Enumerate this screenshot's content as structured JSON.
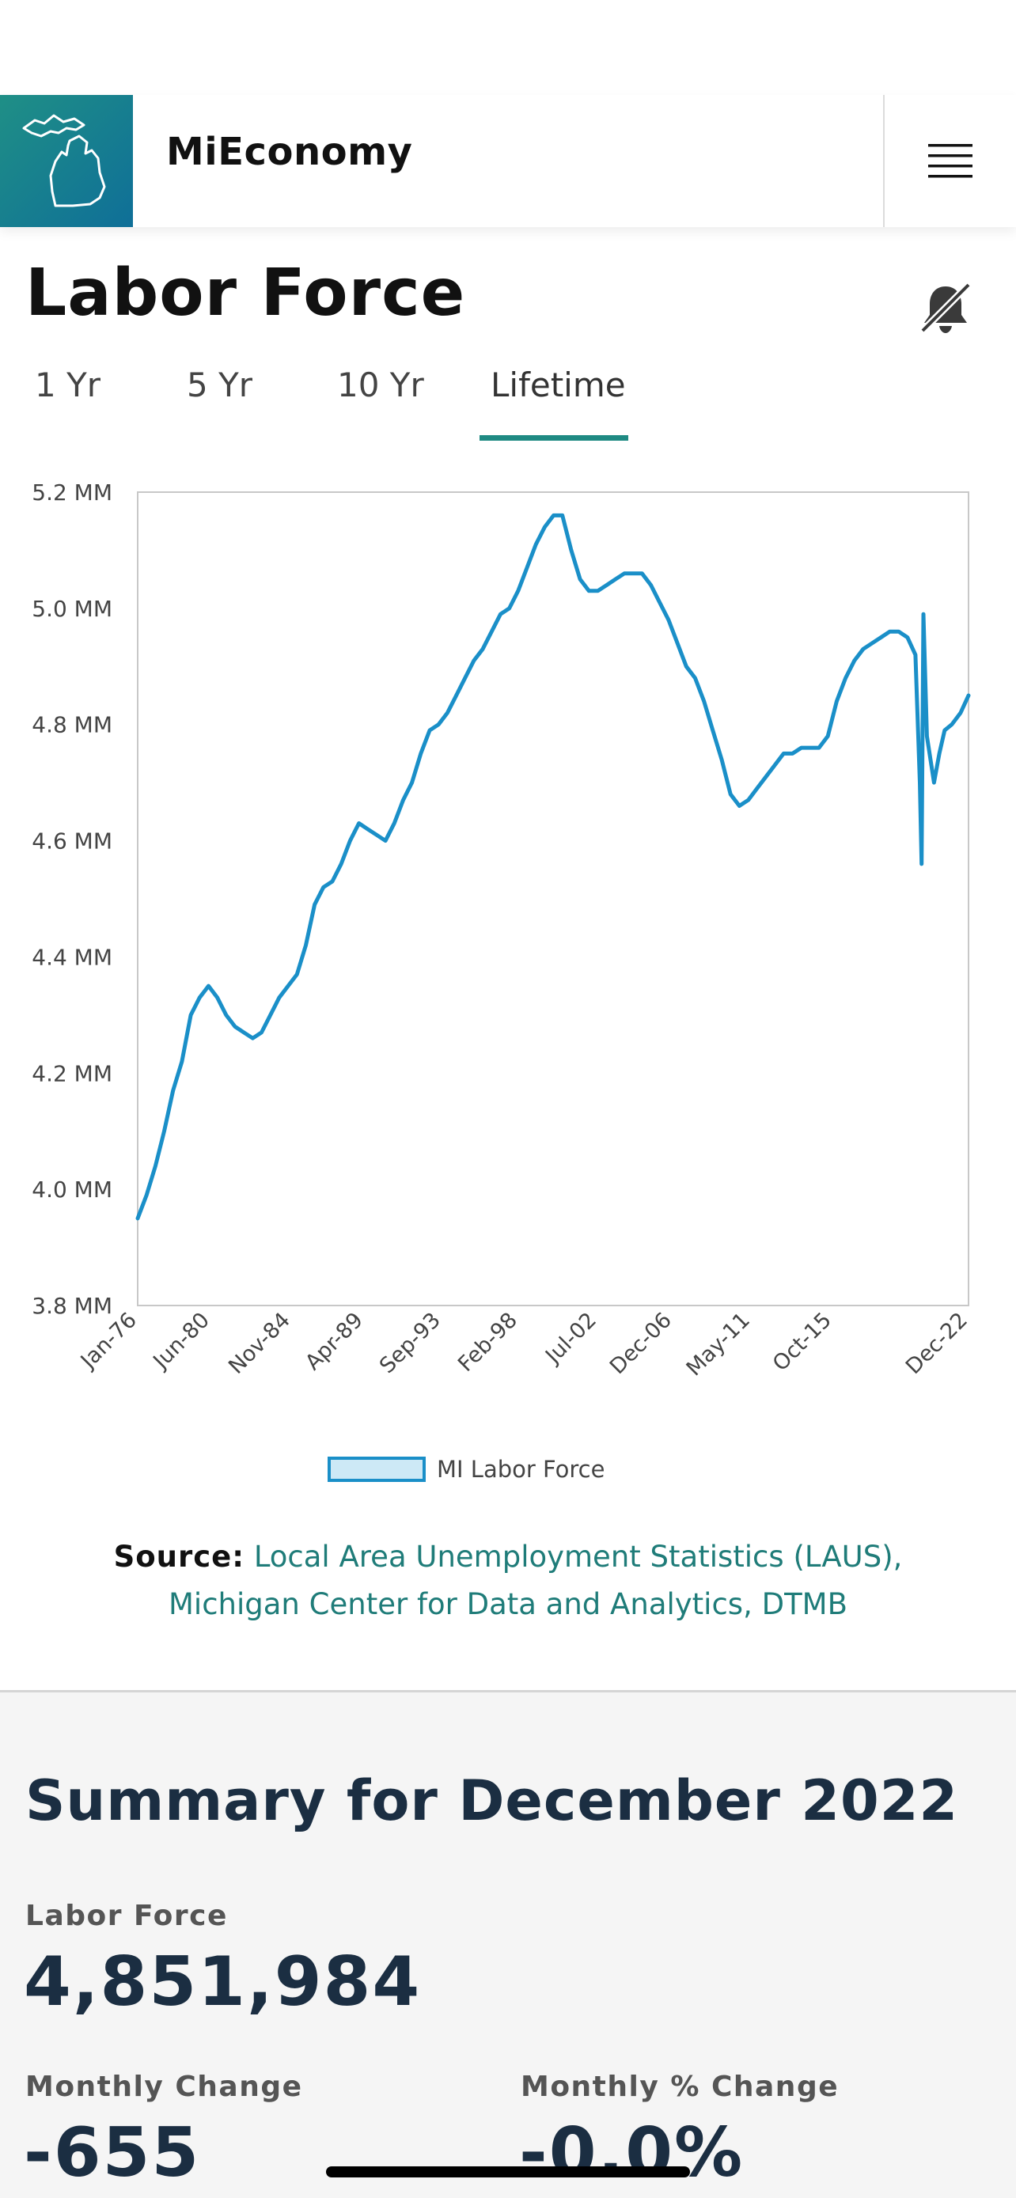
{
  "header": {
    "app_name": "MiEconomy",
    "logo_icon": "michigan-map-icon",
    "menu_icon": "hamburger-menu-icon"
  },
  "page": {
    "title": "Labor Force",
    "notification_icon": "bell-off-icon"
  },
  "tabs": [
    {
      "label": "1 Yr",
      "active": false
    },
    {
      "label": "5 Yr",
      "active": false
    },
    {
      "label": "10 Yr",
      "active": false
    },
    {
      "label": "Lifetime",
      "active": true
    }
  ],
  "colors": {
    "accent": "#1f8a83",
    "line": "#1a8fc8",
    "summary_text": "#1b2e42"
  },
  "chart_data": {
    "type": "line",
    "ylim": [
      3.8,
      5.2
    ],
    "y_ticks": [
      "5.2 MM",
      "5.0 MM",
      "4.8 MM",
      "4.6 MM",
      "4.4 MM",
      "4.2 MM",
      "4.0 MM",
      "3.8 MM"
    ],
    "x_ticks": [
      "Jan-76",
      "Jun-80",
      "Nov-84",
      "Apr-89",
      "Sep-93",
      "Feb-98",
      "Jul-02",
      "Dec-06",
      "May-11",
      "Oct-15",
      "Dec-22"
    ],
    "x_range": [
      1976.0,
      2022.95
    ],
    "series": [
      {
        "name": "MI Labor Force",
        "x": [
          1976.0,
          1976.5,
          1977.0,
          1977.5,
          1978.0,
          1978.5,
          1979.0,
          1979.5,
          1980.0,
          1980.5,
          1981.0,
          1981.5,
          1982.0,
          1982.5,
          1983.0,
          1983.5,
          1984.0,
          1984.5,
          1985.0,
          1985.5,
          1986.0,
          1986.5,
          1987.0,
          1987.5,
          1988.0,
          1988.5,
          1989.0,
          1989.5,
          1990.0,
          1990.5,
          1991.0,
          1991.5,
          1992.0,
          1992.5,
          1993.0,
          1993.5,
          1994.0,
          1994.5,
          1995.0,
          1995.5,
          1996.0,
          1996.5,
          1997.0,
          1997.5,
          1998.0,
          1998.5,
          1999.0,
          1999.5,
          2000.0,
          2000.5,
          2001.0,
          2001.5,
          2002.0,
          2002.5,
          2003.0,
          2003.5,
          2004.0,
          2004.5,
          2005.0,
          2005.5,
          2006.0,
          2006.5,
          2007.0,
          2007.5,
          2008.0,
          2008.5,
          2009.0,
          2009.5,
          2010.0,
          2010.5,
          2011.0,
          2011.5,
          2012.0,
          2012.5,
          2013.0,
          2013.5,
          2014.0,
          2014.5,
          2015.0,
          2015.5,
          2016.0,
          2016.5,
          2017.0,
          2017.5,
          2018.0,
          2018.5,
          2019.0,
          2019.5,
          2019.95,
          2020.2,
          2020.3,
          2020.4,
          2020.6,
          2020.8,
          2021.0,
          2021.3,
          2021.6,
          2022.0,
          2022.5,
          2022.95
        ],
        "y": [
          3.95,
          3.99,
          4.04,
          4.1,
          4.17,
          4.22,
          4.3,
          4.33,
          4.35,
          4.33,
          4.3,
          4.28,
          4.27,
          4.26,
          4.27,
          4.3,
          4.33,
          4.35,
          4.37,
          4.42,
          4.49,
          4.52,
          4.53,
          4.56,
          4.6,
          4.63,
          4.62,
          4.61,
          4.6,
          4.63,
          4.67,
          4.7,
          4.75,
          4.79,
          4.8,
          4.82,
          4.85,
          4.88,
          4.91,
          4.93,
          4.96,
          4.99,
          5.0,
          5.03,
          5.07,
          5.11,
          5.14,
          5.16,
          5.16,
          5.1,
          5.05,
          5.03,
          5.03,
          5.04,
          5.05,
          5.06,
          5.06,
          5.06,
          5.04,
          5.01,
          4.98,
          4.94,
          4.9,
          4.88,
          4.84,
          4.79,
          4.74,
          4.68,
          4.66,
          4.67,
          4.69,
          4.71,
          4.73,
          4.75,
          4.75,
          4.76,
          4.76,
          4.76,
          4.78,
          4.84,
          4.88,
          4.91,
          4.93,
          4.94,
          4.95,
          4.96,
          4.96,
          4.95,
          4.92,
          4.7,
          4.56,
          4.99,
          4.78,
          4.74,
          4.7,
          4.75,
          4.79,
          4.8,
          4.82,
          4.85
        ]
      }
    ],
    "legend": "bottom-center",
    "grid": false
  },
  "source": {
    "label": "Source:",
    "text": "Local Area Unemployment Statistics (LAUS), Michigan Center for Data and Analytics, DTMB"
  },
  "summary": {
    "title": "Summary for December 2022",
    "labor_force_label": "Labor Force",
    "labor_force_value": "4,851,984",
    "monthly_change_label": "Monthly Change",
    "monthly_change_value": "-655",
    "monthly_pct_label": "Monthly % Change",
    "monthly_pct_value": "-0.0%"
  }
}
